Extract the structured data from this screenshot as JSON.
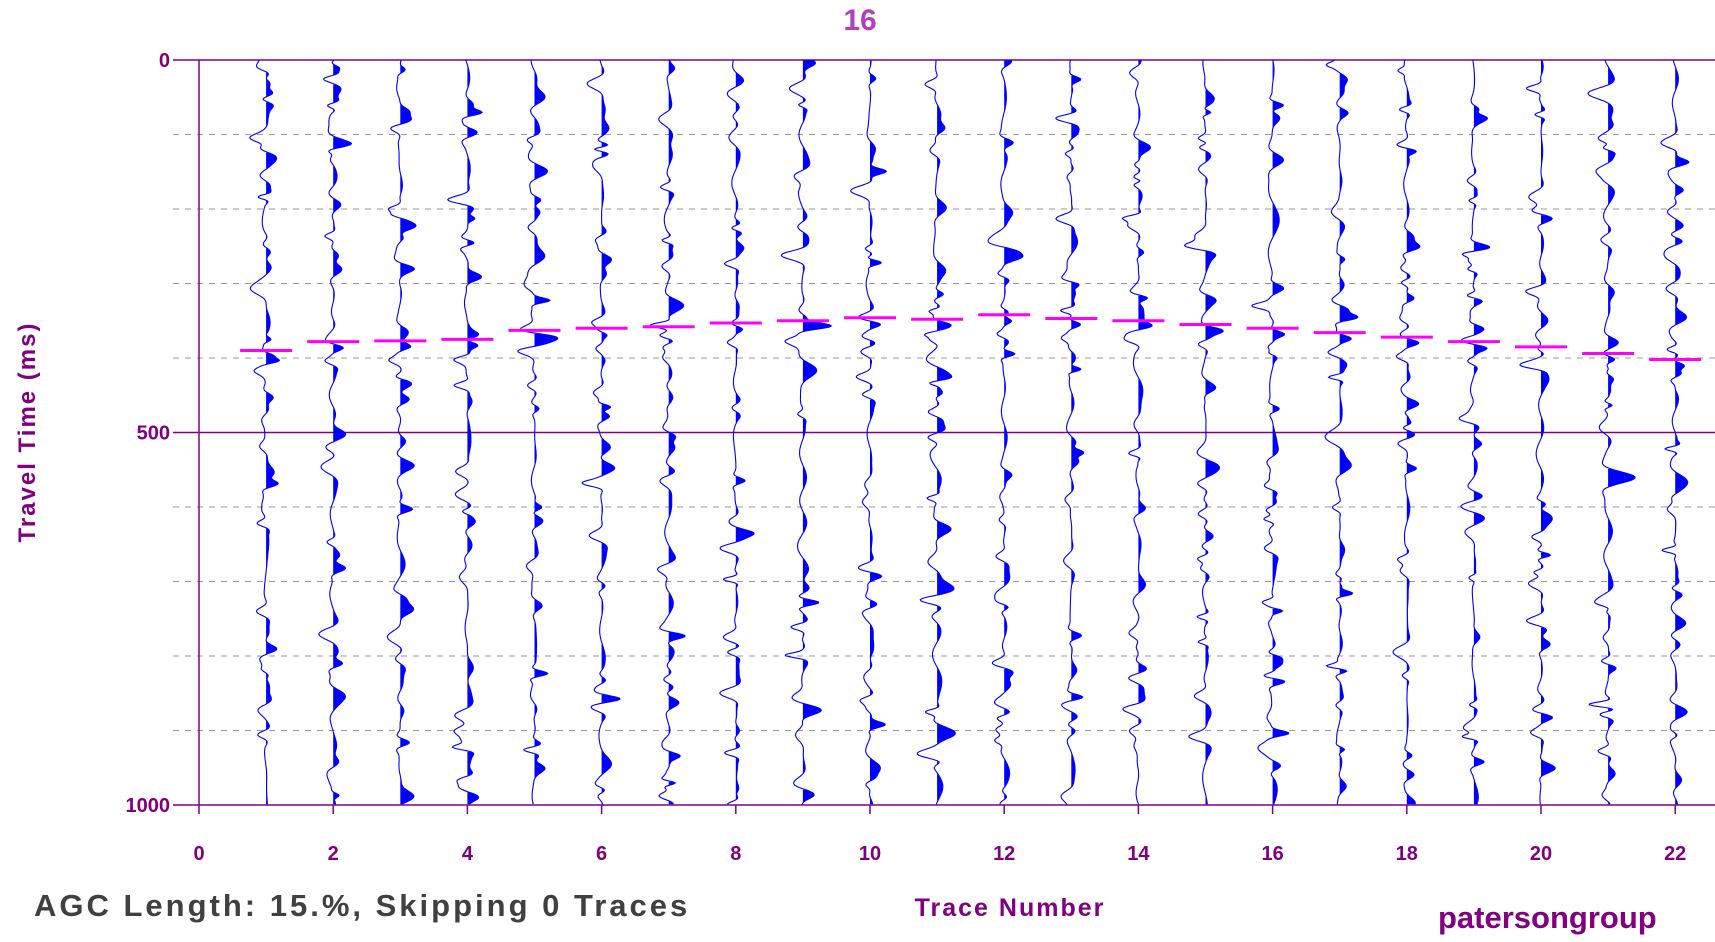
{
  "chart_data": {
    "type": "line",
    "title": "16",
    "xlabel": "Trace Number",
    "ylabel": "Travel Time (ms)",
    "xlim": [
      0,
      22.5
    ],
    "ylim": [
      0,
      1000
    ],
    "y_inverted": true,
    "x_ticks": [
      0,
      2,
      4,
      6,
      8,
      10,
      12,
      14,
      16,
      18,
      20,
      22
    ],
    "y_ticks": [
      0,
      500,
      1000
    ],
    "y_minor_gridlines_ms": [
      100,
      200,
      300,
      400,
      600,
      700,
      800,
      900
    ],
    "grid": true,
    "series_color": "#0000ff",
    "pick_color": "#ff00ff",
    "traces": [
      1,
      2,
      3,
      4,
      5,
      6,
      7,
      8,
      9,
      10,
      11,
      12,
      13,
      14,
      15,
      16,
      17,
      18,
      19,
      20,
      21,
      22
    ],
    "first_break_picks_ms": [
      {
        "trace": 1,
        "time_ms": 390
      },
      {
        "trace": 2,
        "time_ms": 378
      },
      {
        "trace": 3,
        "time_ms": 377
      },
      {
        "trace": 4,
        "time_ms": 375
      },
      {
        "trace": 5,
        "time_ms": 363
      },
      {
        "trace": 6,
        "time_ms": 360
      },
      {
        "trace": 7,
        "time_ms": 358
      },
      {
        "trace": 8,
        "time_ms": 353
      },
      {
        "trace": 9,
        "time_ms": 350
      },
      {
        "trace": 10,
        "time_ms": 346
      },
      {
        "trace": 11,
        "time_ms": 348
      },
      {
        "trace": 12,
        "time_ms": 342
      },
      {
        "trace": 13,
        "time_ms": 347
      },
      {
        "trace": 14,
        "time_ms": 350
      },
      {
        "trace": 15,
        "time_ms": 355
      },
      {
        "trace": 16,
        "time_ms": 360
      },
      {
        "trace": 17,
        "time_ms": 366
      },
      {
        "trace": 18,
        "time_ms": 372
      },
      {
        "trace": 19,
        "time_ms": 378
      },
      {
        "trace": 20,
        "time_ms": 385
      },
      {
        "trace": 21,
        "time_ms": 394
      },
      {
        "trace": 22,
        "time_ms": 402
      }
    ]
  },
  "footer": {
    "agc_text": "AGC Length: 15.%, Skipping 0 Traces",
    "brand": "patersongroup"
  }
}
